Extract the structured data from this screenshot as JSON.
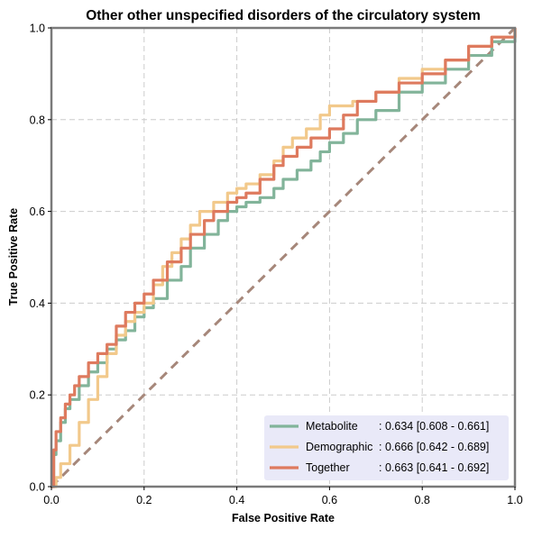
{
  "chart_data": {
    "type": "line",
    "title": "Other other unspecified disorders of the circulatory system",
    "xlabel": "False Positive Rate",
    "ylabel": "True Positive Rate",
    "xlim": [
      0,
      1
    ],
    "ylim": [
      0,
      1
    ],
    "x_ticks": [
      "0.0",
      "0.2",
      "0.4",
      "0.6",
      "0.8",
      "1.0"
    ],
    "y_ticks": [
      "0.0",
      "0.2",
      "0.4",
      "0.6",
      "0.8",
      "1.0"
    ],
    "grid": true,
    "legend_position": "lower-right",
    "series": [
      {
        "name": "Metabolite",
        "stat": ": 0.634 [0.608 - 0.661]",
        "color": "#82b49a",
        "x": [
          0,
          0.005,
          0.01,
          0.02,
          0.03,
          0.04,
          0.06,
          0.08,
          0.1,
          0.12,
          0.14,
          0.16,
          0.18,
          0.2,
          0.22,
          0.25,
          0.28,
          0.3,
          0.33,
          0.36,
          0.38,
          0.4,
          0.42,
          0.45,
          0.48,
          0.5,
          0.53,
          0.56,
          0.58,
          0.6,
          0.63,
          0.66,
          0.7,
          0.75,
          0.8,
          0.85,
          0.9,
          0.95,
          1.0
        ],
        "y": [
          0,
          0.07,
          0.1,
          0.14,
          0.17,
          0.19,
          0.22,
          0.25,
          0.27,
          0.3,
          0.32,
          0.34,
          0.37,
          0.39,
          0.41,
          0.45,
          0.48,
          0.52,
          0.55,
          0.58,
          0.6,
          0.61,
          0.62,
          0.63,
          0.65,
          0.67,
          0.69,
          0.71,
          0.73,
          0.75,
          0.77,
          0.8,
          0.82,
          0.86,
          0.88,
          0.91,
          0.94,
          0.97,
          1.0
        ]
      },
      {
        "name": "Demographic",
        "stat": ": 0.666 [0.642 - 0.689]",
        "color": "#f2c98b",
        "x": [
          0,
          0.01,
          0.02,
          0.04,
          0.06,
          0.08,
          0.1,
          0.12,
          0.14,
          0.16,
          0.18,
          0.2,
          0.22,
          0.24,
          0.26,
          0.28,
          0.3,
          0.32,
          0.35,
          0.38,
          0.4,
          0.42,
          0.45,
          0.48,
          0.5,
          0.52,
          0.55,
          0.58,
          0.6,
          0.65,
          0.7,
          0.75,
          0.8,
          0.85,
          0.9,
          0.95,
          1.0
        ],
        "y": [
          0,
          0.02,
          0.05,
          0.09,
          0.14,
          0.19,
          0.24,
          0.29,
          0.33,
          0.36,
          0.38,
          0.4,
          0.44,
          0.48,
          0.51,
          0.54,
          0.57,
          0.6,
          0.62,
          0.64,
          0.65,
          0.66,
          0.68,
          0.71,
          0.74,
          0.76,
          0.78,
          0.81,
          0.83,
          0.84,
          0.86,
          0.89,
          0.91,
          0.93,
          0.96,
          0.98,
          1.0
        ]
      },
      {
        "name": "Together",
        "stat": ": 0.663 [0.641 - 0.692]",
        "color": "#de7a5e",
        "x": [
          0,
          0.005,
          0.01,
          0.02,
          0.03,
          0.04,
          0.05,
          0.06,
          0.08,
          0.1,
          0.12,
          0.14,
          0.16,
          0.18,
          0.2,
          0.22,
          0.25,
          0.28,
          0.3,
          0.33,
          0.35,
          0.38,
          0.4,
          0.42,
          0.45,
          0.48,
          0.5,
          0.53,
          0.56,
          0.6,
          0.63,
          0.66,
          0.7,
          0.75,
          0.8,
          0.85,
          0.9,
          0.95,
          1.0
        ],
        "y": [
          0,
          0.08,
          0.12,
          0.15,
          0.18,
          0.2,
          0.22,
          0.24,
          0.27,
          0.29,
          0.31,
          0.35,
          0.38,
          0.4,
          0.42,
          0.45,
          0.49,
          0.52,
          0.55,
          0.58,
          0.6,
          0.62,
          0.63,
          0.64,
          0.67,
          0.7,
          0.72,
          0.74,
          0.76,
          0.78,
          0.81,
          0.84,
          0.86,
          0.88,
          0.9,
          0.93,
          0.96,
          0.98,
          1.0
        ]
      }
    ],
    "reference_line": {
      "x": [
        0,
        1
      ],
      "y": [
        0,
        1
      ],
      "color": "#a6877a"
    },
    "legend_background": "#e9e9f8",
    "frame_color": "#7a7a7a",
    "grid_color": "#cccccc"
  }
}
